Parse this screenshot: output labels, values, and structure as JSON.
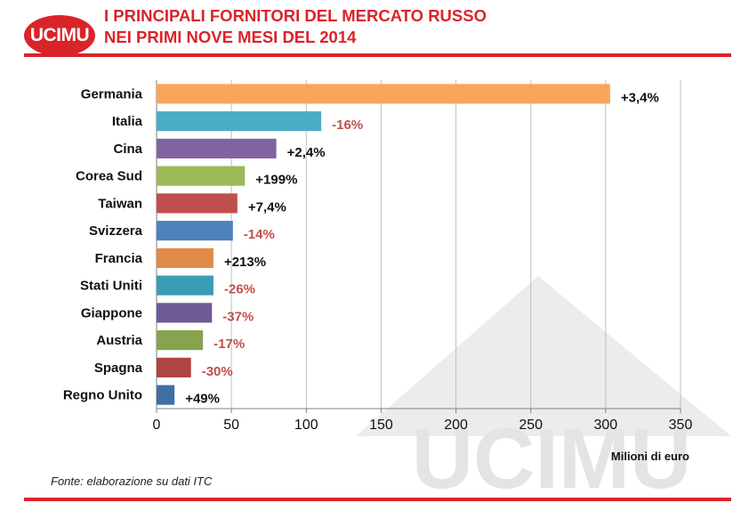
{
  "header": {
    "logo_text": "UCIMU",
    "title_line1": "I PRINCIPALI FORNITORI DEL MERCATO RUSSO",
    "title_line2": "NEI PRIMI NOVE MESI DEL 2014"
  },
  "watermark_text": "UCIMU",
  "footer": {
    "source": "Fonte: elaborazione su dati ITC"
  },
  "colors": {
    "brand_red": "#d9252a",
    "positive_label": "#111111",
    "negative_label": "#c0504d"
  },
  "chart_data": {
    "type": "bar",
    "orientation": "horizontal",
    "xlabel": "Milioni di euro",
    "xlim": [
      0,
      350
    ],
    "xticks": [
      0,
      50,
      100,
      150,
      200,
      250,
      300,
      350
    ],
    "grid": true,
    "categories": [
      "Germania",
      "Italia",
      "Cina",
      "Corea Sud",
      "Taiwan",
      "Svizzera",
      "Francia",
      "Stati Uniti",
      "Giappone",
      "Austria",
      "Spagna",
      "Regno Unito"
    ],
    "values": [
      303,
      110,
      80,
      59,
      54,
      51,
      38,
      38,
      37,
      31,
      23,
      12
    ],
    "labels": [
      "+3,4%",
      "-16%",
      "+2,4%",
      "+199%",
      "+7,4%",
      "-14%",
      "+213%",
      "-26%",
      "-37%",
      "-17%",
      "-30%",
      "+49%"
    ],
    "bar_colors": [
      "#f9a65a",
      "#4bacc6",
      "#8064a2",
      "#9bbb59",
      "#c0504d",
      "#4f81bd",
      "#e08b47",
      "#3a9db5",
      "#6e5a96",
      "#86a34e",
      "#ad4542",
      "#3f6fa5"
    ]
  }
}
